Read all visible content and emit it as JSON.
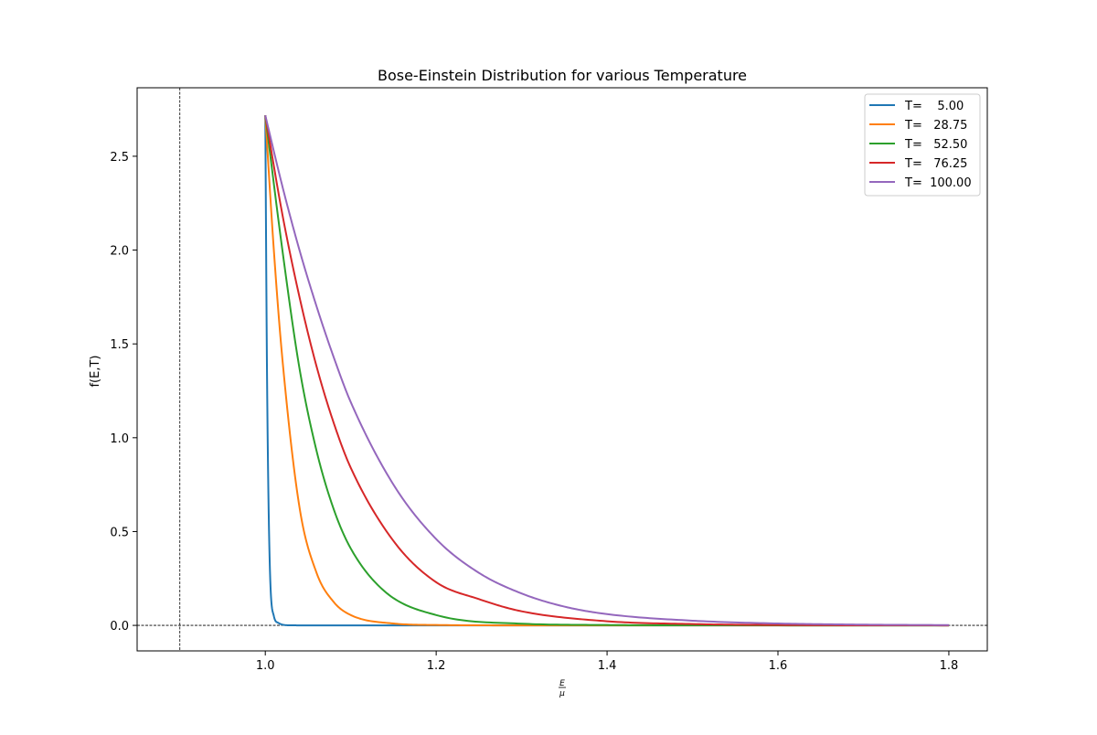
{
  "chart_data": {
    "type": "line",
    "title": "Bose-Einstein Distribution for various Temperature",
    "xlabel_num": "E",
    "xlabel_den": "μ",
    "ylabel": "f(E,T)",
    "xlim": [
      0.85,
      1.845
    ],
    "ylim": [
      -0.136,
      2.865
    ],
    "x_ticks": [
      1.0,
      1.2,
      1.4,
      1.6,
      1.8
    ],
    "x_tick_labels": [
      "1.0",
      "1.2",
      "1.4",
      "1.6",
      "1.8"
    ],
    "y_ticks": [
      0.0,
      0.5,
      1.0,
      1.5,
      2.0,
      2.5
    ],
    "y_tick_labels": [
      "0.0",
      "0.5",
      "1.0",
      "1.5",
      "2.0",
      "2.5"
    ],
    "grid": false,
    "legend_position": "top-right",
    "reference_lines": {
      "vertical_x": 0.9,
      "horizontal_y": 0.0
    },
    "x_range": [
      1.0,
      1.8
    ],
    "series": [
      {
        "name": "T=    5.00",
        "color": "#1f77b4",
        "points": [
          [
            1.0,
            2.718
          ],
          [
            1.002,
            1.35
          ],
          [
            1.005,
            0.37
          ],
          [
            1.01,
            0.05
          ],
          [
            1.015,
            0.014
          ],
          [
            1.02,
            0.004
          ],
          [
            1.03,
            0.0003
          ],
          [
            1.05,
            0.0
          ],
          [
            1.8,
            0.0
          ]
        ]
      },
      {
        "name": "T=   28.75",
        "color": "#ff7f0e",
        "points": [
          [
            1.0,
            2.718
          ],
          [
            1.01,
            2.0
          ],
          [
            1.02,
            1.42
          ],
          [
            1.04,
            0.63
          ],
          [
            1.06,
            0.28
          ],
          [
            1.08,
            0.125
          ],
          [
            1.1,
            0.055
          ],
          [
            1.15,
            0.01
          ],
          [
            1.2,
            0.002
          ],
          [
            1.3,
            0.0
          ],
          [
            1.8,
            0.0
          ]
        ]
      },
      {
        "name": "T=   52.50",
        "color": "#2ca02c",
        "points": [
          [
            1.0,
            2.718
          ],
          [
            1.02,
            2.0
          ],
          [
            1.04,
            1.37
          ],
          [
            1.06,
            0.93
          ],
          [
            1.08,
            0.62
          ],
          [
            1.1,
            0.41
          ],
          [
            1.14,
            0.18
          ],
          [
            1.2,
            0.055
          ],
          [
            1.3,
            0.009
          ],
          [
            1.4,
            0.002
          ],
          [
            1.5,
            0.0003
          ],
          [
            1.8,
            0.0
          ]
        ]
      },
      {
        "name": "T=   76.25",
        "color": "#d62728",
        "points": [
          [
            1.0,
            2.718
          ],
          [
            1.02,
            2.19
          ],
          [
            1.04,
            1.75
          ],
          [
            1.06,
            1.38
          ],
          [
            1.08,
            1.08
          ],
          [
            1.1,
            0.84
          ],
          [
            1.15,
            0.45
          ],
          [
            1.2,
            0.23
          ],
          [
            1.25,
            0.14
          ],
          [
            1.3,
            0.075
          ],
          [
            1.4,
            0.022
          ],
          [
            1.5,
            0.007
          ],
          [
            1.6,
            0.002
          ],
          [
            1.8,
            0.0
          ]
        ]
      },
      {
        "name": "T=  100.00",
        "color": "#9467bd",
        "points": [
          [
            1.0,
            2.718
          ],
          [
            1.02,
            2.34
          ],
          [
            1.04,
            2.0
          ],
          [
            1.06,
            1.7
          ],
          [
            1.08,
            1.43
          ],
          [
            1.1,
            1.19
          ],
          [
            1.15,
            0.75
          ],
          [
            1.2,
            0.46
          ],
          [
            1.25,
            0.28
          ],
          [
            1.3,
            0.17
          ],
          [
            1.35,
            0.1
          ],
          [
            1.4,
            0.06
          ],
          [
            1.5,
            0.025
          ],
          [
            1.6,
            0.01
          ],
          [
            1.7,
            0.004
          ],
          [
            1.8,
            0.0015
          ]
        ]
      }
    ]
  }
}
